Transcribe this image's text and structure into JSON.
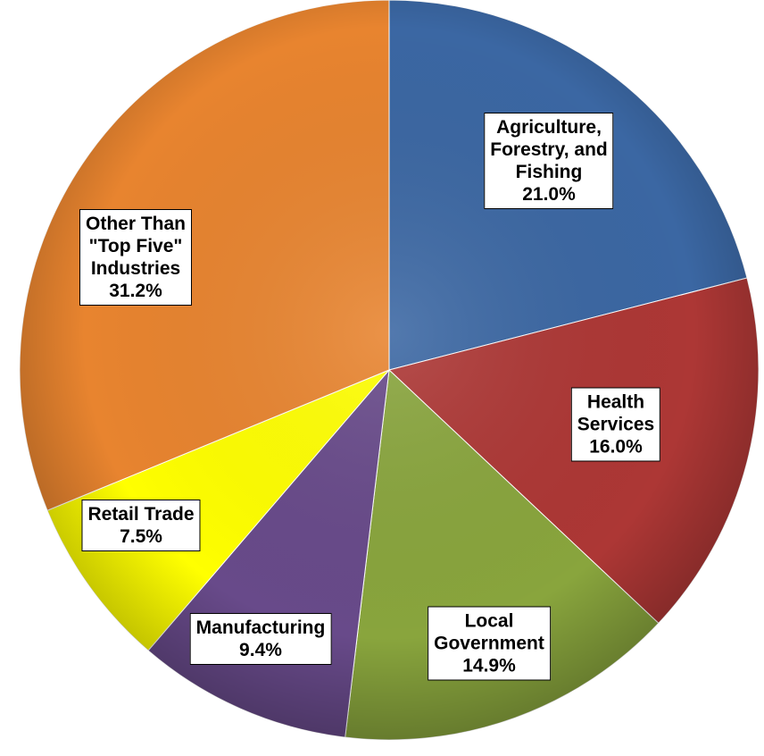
{
  "chart_data": {
    "type": "pie",
    "categories": [
      "Agriculture,\nForestry, and\nFishing",
      "Health\nServices",
      "Local\nGovernment",
      "Manufacturing",
      "Retail Trade",
      "Other Than\n\"Top Five\"\nIndustries"
    ],
    "values": [
      21.0,
      16.0,
      14.9,
      9.4,
      7.5,
      31.2
    ],
    "value_labels": [
      "21.0%",
      "16.0%",
      "14.9%",
      "9.4%",
      "7.5%",
      "31.2%"
    ],
    "colors": [
      "#3b67a3",
      "#ad3735",
      "#89a53d",
      "#684a8a",
      "#ffff00",
      "#e8842f"
    ]
  }
}
